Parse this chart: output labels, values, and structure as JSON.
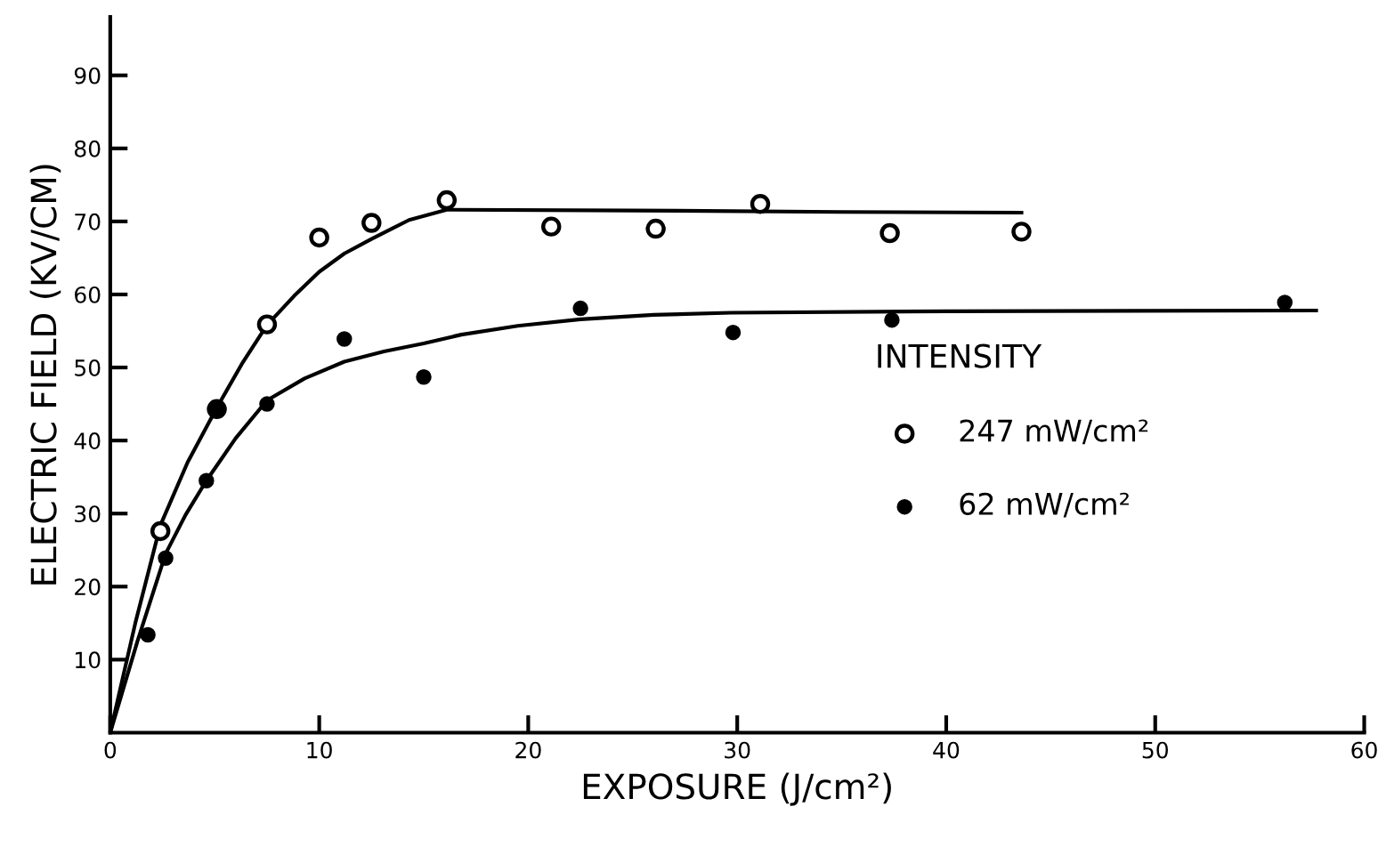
{
  "chart_data": {
    "type": "scatter",
    "xlabel": "EXPOSURE (J/cm²)",
    "ylabel": "ELECTRIC FIELD (KV/CM)",
    "legend_title": "INTENSITY",
    "xlim": [
      0,
      60
    ],
    "ylim": [
      0,
      98
    ],
    "xticks": [
      0,
      10,
      20,
      30,
      40,
      50,
      60
    ],
    "yticks": [
      10,
      20,
      30,
      40,
      50,
      60,
      70,
      80,
      90
    ],
    "grid": false,
    "legend": "right",
    "series": [
      {
        "name": "247 mW/cm²",
        "color": "#ffffff",
        "marker": "circle",
        "x": [
          2.4,
          5.1,
          7.5,
          10.0,
          12.5,
          16.1,
          21.1,
          26.1,
          31.1,
          37.3,
          43.6
        ],
        "values": [
          27.6,
          44.3,
          55.9,
          67.8,
          69.8,
          72.9,
          69.3,
          69.0,
          72.4,
          68.4,
          68.6
        ]
      },
      {
        "name": "62 mW/cm²",
        "color": "#000000",
        "marker": "circle",
        "x": [
          1.8,
          2.65,
          4.6,
          5.1,
          7.5,
          11.2,
          15.0,
          22.5,
          29.8,
          37.4,
          56.2
        ],
        "values": [
          13.4,
          23.9,
          34.5,
          44.3,
          45.0,
          53.9,
          48.7,
          58.1,
          54.8,
          56.5,
          58.9
        ]
      },
      {
        "type": "line",
        "color": "#000000",
        "x": [
          0,
          1.2,
          2.4,
          3.7,
          5.1,
          6.3,
          7.5,
          8.8,
          10.0,
          11.2,
          12.5,
          14.3,
          16.1,
          25,
          35,
          43.6
        ],
        "values": [
          0,
          15,
          28.4,
          37,
          44.5,
          50.5,
          55.8,
          59.8,
          63.1,
          65.6,
          67.6,
          70.2,
          71.6,
          71.5,
          71.3,
          71.2
        ]
      },
      {
        "type": "line",
        "color": "#000000",
        "x": [
          0,
          1.3,
          2.65,
          3.6,
          4.6,
          6.0,
          7.5,
          9.3,
          11.2,
          13.1,
          15.0,
          16.8,
          19.5,
          22.5,
          26,
          29.7,
          40,
          57.7
        ],
        "values": [
          0,
          12.5,
          24.5,
          29.8,
          34.5,
          40.3,
          45.5,
          48.5,
          50.8,
          52.2,
          53.3,
          54.5,
          55.7,
          56.6,
          57.2,
          57.5,
          57.7,
          57.8
        ]
      }
    ]
  }
}
